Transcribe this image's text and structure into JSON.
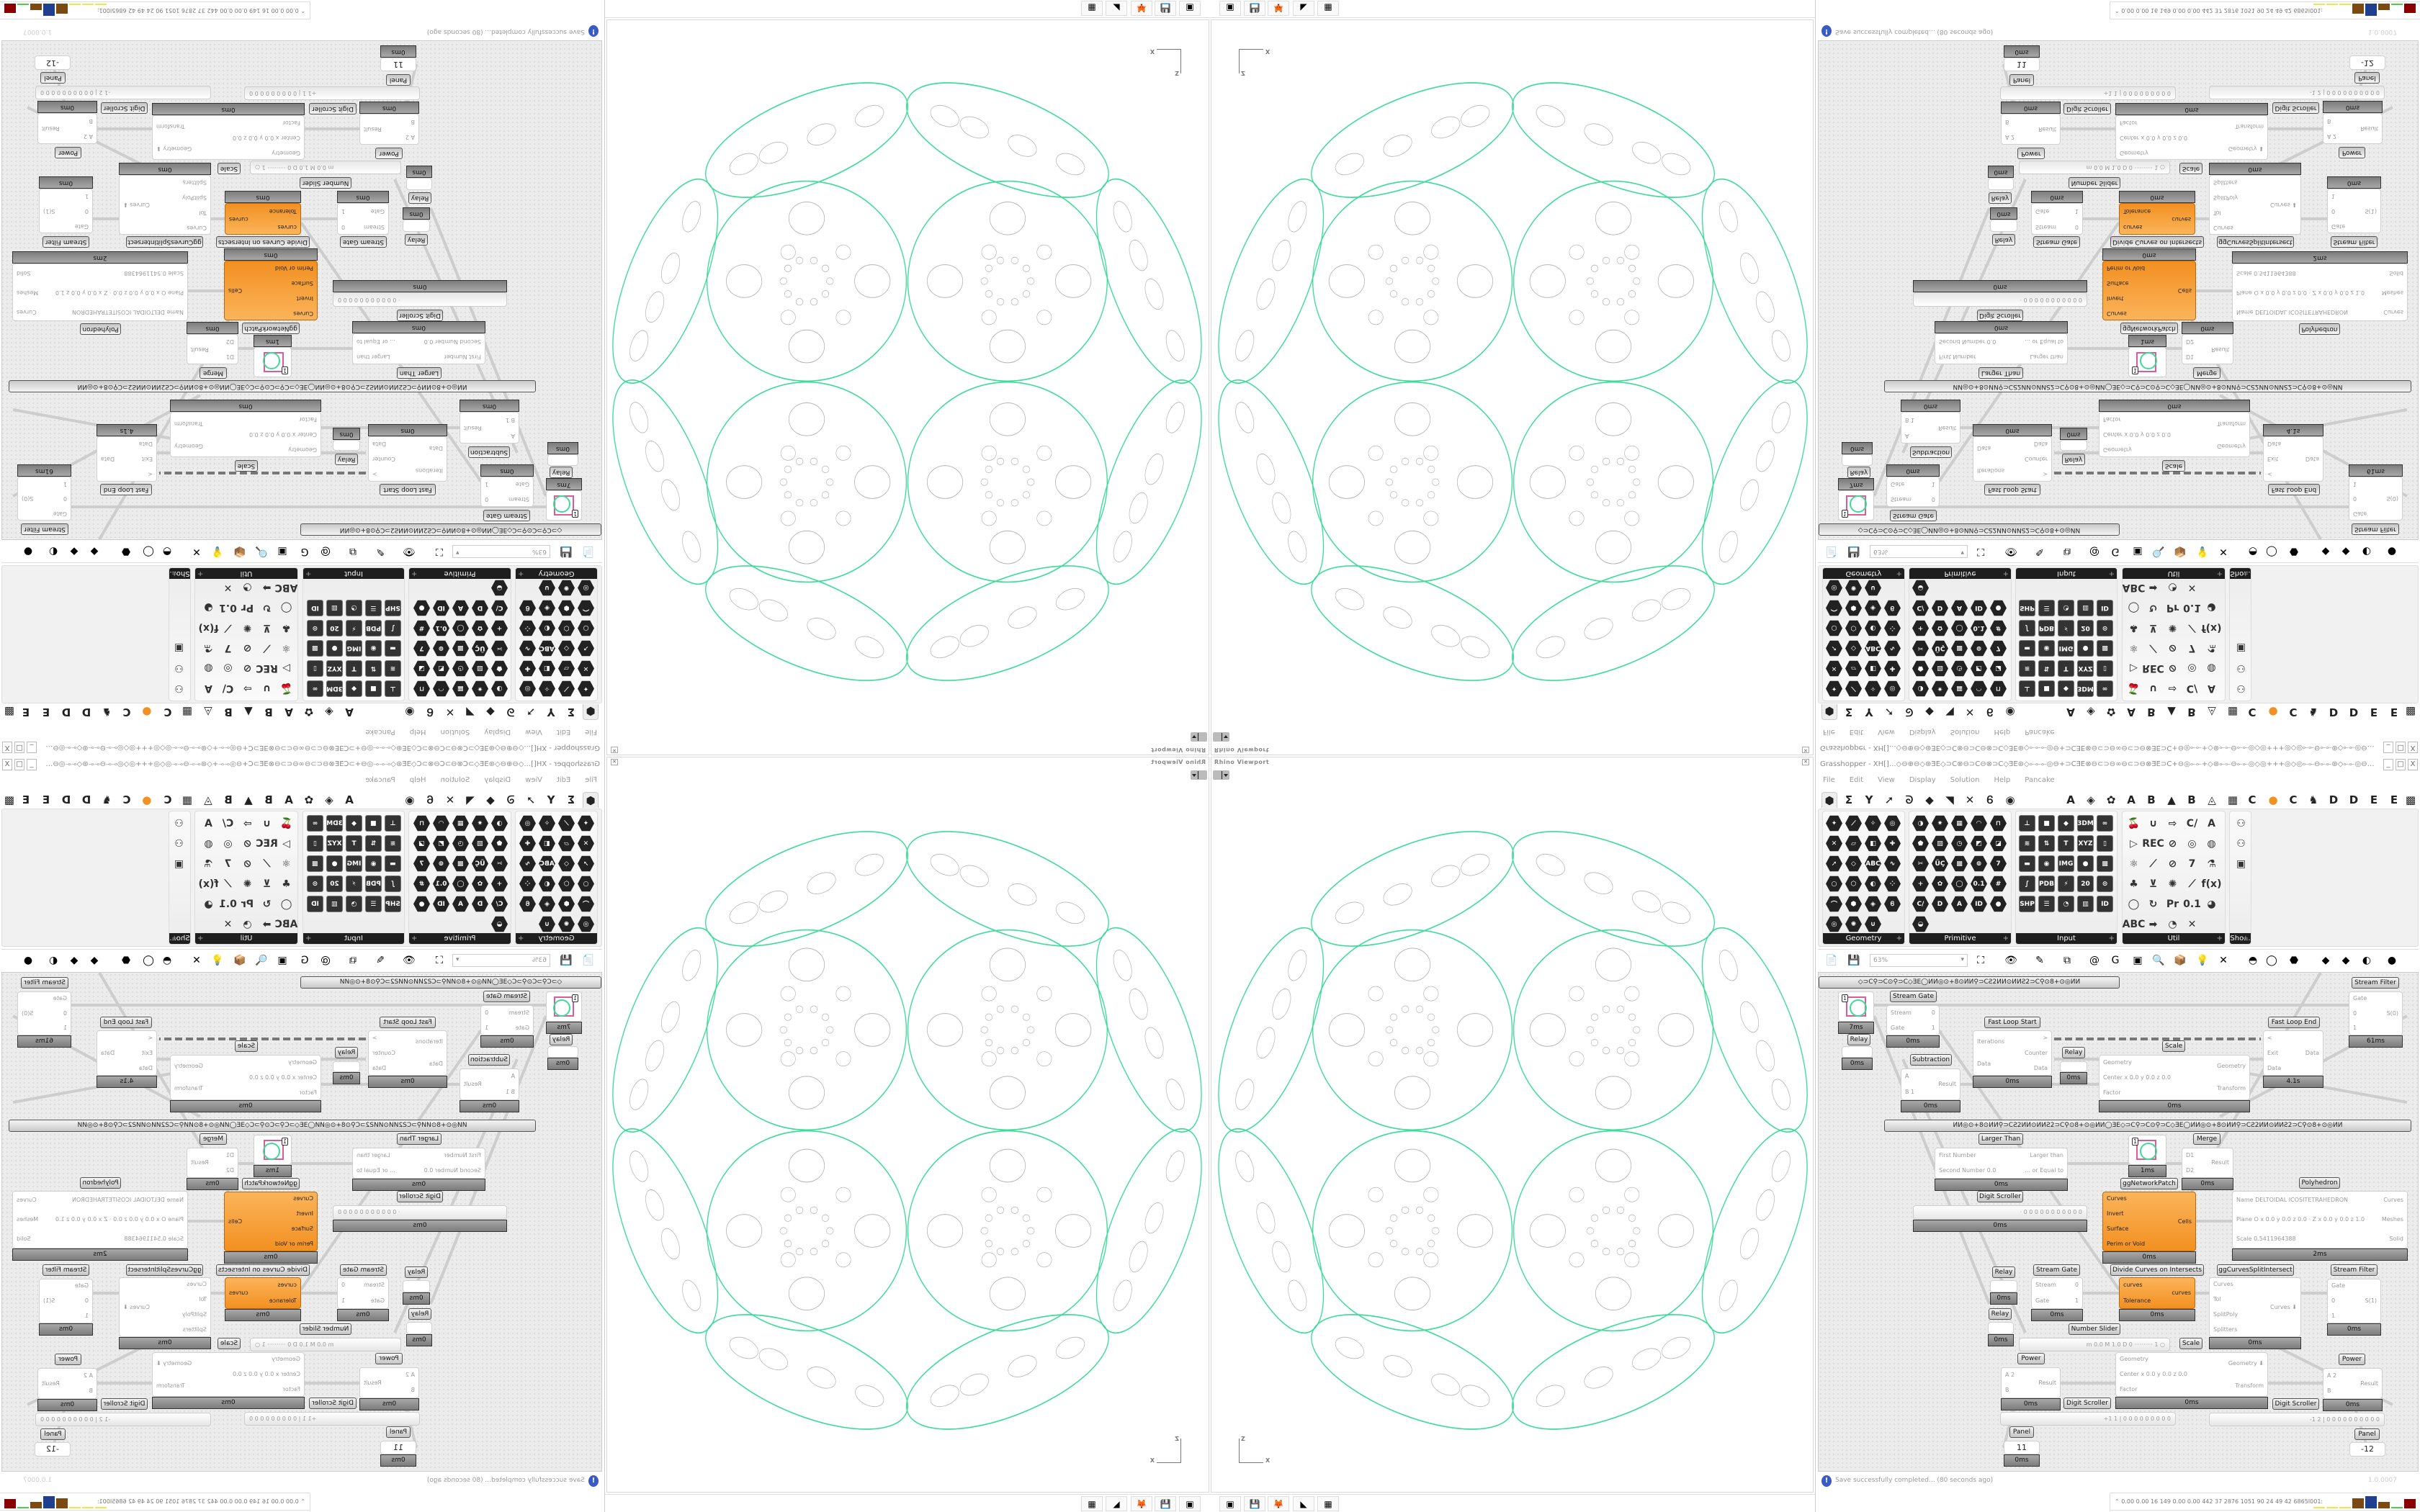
{
  "colors": {
    "curve": "#3ddc97",
    "inner": "#b5b5b5",
    "orange": "#f29021",
    "info": "#3a5bc7"
  },
  "viewport": {
    "title": "Rhino Viewport",
    "close_icon": "close-icon",
    "axis": {
      "z": "Z",
      "x": "X"
    }
  },
  "taskbar": {
    "apps": [
      {
        "icon": "monitor-icon",
        "glyph": "▣"
      },
      {
        "icon": "floppy-64-icon",
        "glyph": "💾"
      },
      {
        "icon": "firefox-icon",
        "glyph": "🦊"
      },
      {
        "icon": "inkscape-icon",
        "glyph": "◣"
      },
      {
        "icon": "calculator-icon",
        "glyph": "▦"
      }
    ],
    "tray_expand": "⌃",
    "stats": "0.00 0.00  16  149  0.00 0.00  442  37  2876 1051  90  24  49  42  6865I001:",
    "meter_colors": [
      "#e8e84a",
      "#e8e84a",
      "#e8e84a",
      "#7a4a10",
      "#1f3f8f",
      "#7a4a10",
      "#4ad04a",
      "#8a0000"
    ],
    "meter_levels": [
      0.05,
      0.05,
      0.05,
      0.8,
      0.95,
      0.5,
      0.05,
      0.7
    ]
  },
  "grasshopper": {
    "title": "Grasshopper - XH[]...◇⊖⊕⊖◇⊛ƎE◇⊃C⊗⊖⊃C⊖⊗⊃C◇ƎE⊛◇⟜⟜⟜◎⊖+⊃CƎE⊗⊖⊂⊃⊖∞⊖⊂⊃⊖⊗ƎE⊃C+⊖◎⟜⟜+◇⊛⟜⟜⊖⟜⟜◎◇◎+++◎◇◎⟜⟜⊖⟜⟜⊛◇⟜⟜◎⊖+⊃CƎE⊗⊖⊂⊃⊖∞⊖⊂⊃",
    "window_buttons": [
      "_",
      "□",
      "X"
    ],
    "menu": [
      "File",
      "Edit",
      "View",
      "Display",
      "Solution",
      "Help",
      "Pancake"
    ],
    "tabs": [
      "⬢",
      "Σ",
      "Y",
      "➚",
      "ᘐ",
      "◆",
      "◥",
      "✕",
      "Ꮾ",
      "◉",
      "A",
      "◈",
      "✿",
      "A",
      "B",
      "▲",
      "B",
      "◬",
      "▦",
      "C",
      "●",
      "C",
      "♞",
      "D",
      "D",
      "E",
      "E",
      "▩"
    ],
    "panels": [
      {
        "label": "Geometry",
        "icons": [
          "✦",
          "⟋",
          "✧",
          "◎",
          "✕",
          "▱",
          "◧",
          "✚",
          "➚",
          "◇",
          "ABC",
          "∿",
          "○",
          "⬡",
          "◐",
          "⁘",
          "⌒",
          "⬢",
          "◈",
          "Ꮾ",
          "◎",
          "✺",
          "∪"
        ]
      },
      {
        "label": "Primitive",
        "icons": [
          "◑",
          "✷",
          "▦",
          "◠",
          "⊓",
          "⬟",
          "▨",
          "◷",
          "◩",
          "◪",
          "✂",
          "ÜÇ",
          "▩",
          "⊚",
          "7",
          "+",
          "✿",
          "◯",
          "0.1",
          "#",
          "C/",
          "D",
          "A",
          "ID",
          "●",
          "◒"
        ]
      },
      {
        "label": "Input",
        "icons": [
          "⊥",
          "■",
          "◆",
          "3DM",
          "∞",
          "≋",
          "⇅",
          "T",
          "XYZ",
          "▯",
          "▬",
          "◉",
          "IMG",
          "●",
          "▩",
          "∫",
          "PDB",
          "⚡",
          "20",
          "⊙",
          "SHP",
          "☰",
          "◔",
          "▥",
          "ID"
        ]
      },
      {
        "label": "Util",
        "icons": [
          "🍒",
          "∪",
          "⇨",
          "C/",
          "A",
          "▷",
          "REC",
          "⊘",
          "◎",
          "◍",
          "⚛",
          "⟋",
          "⊘",
          "7",
          "⚗",
          "♣",
          "⊻",
          "✺",
          "⟋",
          "f(x)",
          "◯",
          "↻",
          "Pr",
          "0.1",
          "◕",
          "ABC",
          "➡",
          "◔",
          "✕"
        ]
      },
      {
        "label": "Sho...",
        "icons": [
          "⚇",
          "⚇",
          "▣"
        ]
      }
    ],
    "toolbar": {
      "zoom_value": "63%",
      "icons": [
        "new-document-icon",
        "save-icon",
        "zoom-extents-icon",
        "preview-eye-icon",
        "sketch-icon",
        "bake-icon",
        "email-icon",
        "gha-icon",
        "image-icon",
        "search-icon",
        "package-icon",
        "bulb-icon",
        "wire-icon",
        "mesh-icon",
        "ring-icon",
        "red-shape-icon",
        "teal-shape-icon",
        "green-shape-icon",
        "sphere-icon",
        "blue-sphere-icon"
      ]
    },
    "groups": [
      "◇⊃C⚲⊃C⊙⚲⊃C◇ƎE◯ИИ◎⊙+8⊙ИИ⚲⊃CƧ2ИИ⊙ИИƧ2⊃C⚲⊙8+⊙◎ИИ",
      "ИИ◎⊙+8⊙ИИ⚲⊃CƧ2ИИ⊙ИИƧ2⊃C⚲⊙8+⊙◎ИИ◯ƎE◇⊃C⚲⊃C⊙⚲⊃C◇ƎE◯ИИ◎⊙+8⊙ИИ⚲⊃CƧ2ИИ⊙ИИƧ2⊃C⚲⊙8+⊙◎ИИ"
    ],
    "nodes": [
      {
        "type": "preview",
        "value": "1",
        "timer": "7ms"
      },
      {
        "label": "Relay",
        "type": "relay",
        "timer": "0ms"
      },
      {
        "label": "Stream Gate",
        "inputs": [
          "Stream",
          "Gate"
        ],
        "outputs": [
          "0",
          "1"
        ],
        "timer": "0ms"
      },
      {
        "label": "Fast Loop Start",
        "inputs": [
          "Iterations",
          "Data"
        ],
        "outputs": [
          ">",
          "Counter",
          "Data"
        ],
        "timer": "0ms"
      },
      {
        "label": "Subtraction",
        "inputs": [
          "A",
          "B 1"
        ],
        "outputs": [
          "Result"
        ],
        "timer": "0ms"
      },
      {
        "label": "Relay",
        "type": "relay",
        "timer": "0ms"
      },
      {
        "label": "Scale",
        "inputs": [
          "Geometry",
          "Center x 0.0 y 0.0 z 0.0",
          "Factor"
        ],
        "outputs": [
          "Geometry",
          "Transform"
        ],
        "timer": "0ms"
      },
      {
        "label": "Fast Loop End",
        "inputs": [
          "<",
          "Exit",
          "Data"
        ],
        "outputs": [
          "Data"
        ],
        "timer": "4.1s"
      },
      {
        "label": "Stream Filter",
        "inputs": [
          "Gate",
          "0",
          "1"
        ],
        "outputs": [
          "S(0)"
        ],
        "timer": "61ms"
      },
      {
        "label": "Larger Than",
        "inputs": [
          "First Number",
          "Second Number 0.0"
        ],
        "outputs": [
          "Larger than",
          "... or Equal to"
        ],
        "timer": "0ms"
      },
      {
        "label": "Digit Scroller",
        "type": "slider",
        "value": "· 0 0 0 0 0 0 0 0 0 0 0",
        "timer": "0ms"
      },
      {
        "type": "preview",
        "value": "1",
        "timer": "1ms"
      },
      {
        "label": "ggNetworkPatch",
        "orange": true,
        "inputs": [
          "Curves",
          "Invert",
          "Surface",
          "Perim or Void"
        ],
        "outputs": [
          "Cells"
        ],
        "timer": "0ms"
      },
      {
        "label": "Merge",
        "inputs": [
          "D1",
          "D2"
        ],
        "outputs": [
          "Result"
        ],
        "timer": "0ms"
      },
      {
        "label": "Polyhedron",
        "inputs": [
          "Name DELTOIDAL ICOSITETRAHEDRON",
          "Plane  O x 0.0 y 0.0 z 0.0 · Z x 0.0 y 0.0 z 1.0",
          "Scale 0.5411964388"
        ],
        "outputs": [
          "Curves",
          "Meshes",
          "Solid"
        ],
        "timer": "2ms"
      },
      {
        "label": "Relay",
        "type": "relay",
        "timer": "0ms"
      },
      {
        "label": "Relay",
        "type": "relay",
        "timer": "0ms"
      },
      {
        "label": "Stream Gate",
        "inputs": [
          "Stream",
          "Gate"
        ],
        "outputs": [
          "0",
          "1"
        ],
        "timer": "0ms"
      },
      {
        "label": "Divide Curves on Intersects",
        "orange": true,
        "inputs": [
          "curves",
          "Tolerance"
        ],
        "outputs": [
          "curves"
        ],
        "timer": "0ms"
      },
      {
        "label": "ggCurvesSplitIntersect",
        "inputs": [
          "Curves",
          "Tol",
          "SplitPoly",
          "Splitters"
        ],
        "outputs": [
          "Curves ⬇"
        ],
        "timer": "0ms"
      },
      {
        "label": "Stream Filter",
        "inputs": [
          "Gate",
          "0",
          "1"
        ],
        "outputs": [
          "S(1)"
        ],
        "timer": "0ms"
      },
      {
        "label": "Number Slider",
        "type": "slider",
        "value": "m 0.0 M 1.0 D 0  ·········· 1 ○"
      },
      {
        "label": "Scale",
        "inputs": [
          "Geometry",
          "Center x 0.0 y 0.0 z 0.0",
          "Factor"
        ],
        "outputs": [
          "Geometry ⬇",
          "Transform"
        ],
        "timer": "0ms"
      },
      {
        "label": "Power",
        "inputs": [
          "A 2",
          "B"
        ],
        "outputs": [
          "Result"
        ],
        "timer": "0ms"
      },
      {
        "label": "Digit Scroller",
        "type": "slider",
        "value": "+1 1 | 0 0 0 0 0 0 0 0 0"
      },
      {
        "label": "Digit Scroller",
        "type": "slider",
        "value": "-1 2 | 0 0 0 0 0 0 0 0 0 0"
      },
      {
        "label": "Power",
        "inputs": [
          "A 2",
          "B"
        ],
        "outputs": [
          "Result"
        ],
        "timer": "0ms"
      },
      {
        "label": "Panel",
        "type": "panel",
        "value": "11",
        "timer": "0ms"
      },
      {
        "label": "Panel",
        "type": "panel",
        "value": "-12"
      }
    ],
    "status": {
      "message": "Save successfully completed... (80 seconds ago)",
      "version": "1.0.0007"
    }
  }
}
